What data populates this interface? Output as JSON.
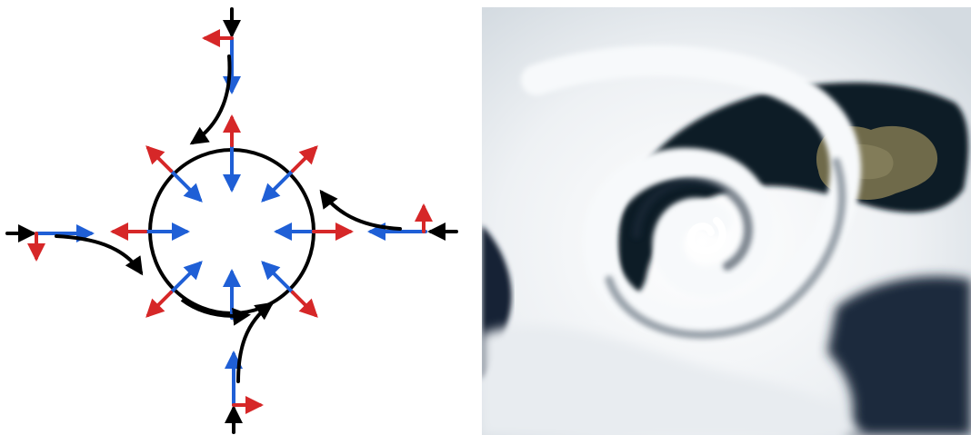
{
  "diagram": {
    "arrow_colors": {
      "coriolis": "#d62728",
      "pressure_gradient": "#1f5fd6",
      "flow": "#000000"
    },
    "circle_color": "#000000"
  },
  "photo": {
    "colors": {
      "ocean": "#0d1a26",
      "cloud": "#f4f6f8",
      "cloud_shadow": "#c9d2da",
      "land": "#6f6a4a",
      "land_highlight": "#8a8460"
    }
  }
}
